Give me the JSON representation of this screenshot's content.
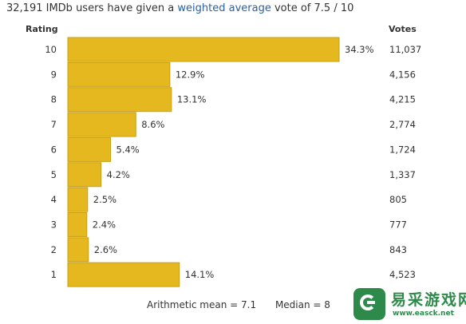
{
  "header": {
    "prefix": "32,191 IMDb users have given a",
    "link_text": "weighted average",
    "suffix": "vote of 7.5 / 10"
  },
  "columns": {
    "rating": "Rating",
    "votes": "Votes"
  },
  "colors": {
    "bar": "#e4b81e",
    "bar_edge": "#c99f10",
    "link": "#2a5fa0",
    "logo": "#2e8a4a"
  },
  "chart_data": {
    "type": "bar",
    "orientation": "horizontal",
    "categories": [
      "10",
      "9",
      "8",
      "7",
      "6",
      "5",
      "4",
      "3",
      "2",
      "1"
    ],
    "percent_labels": [
      "34.3%",
      "12.9%",
      "13.1%",
      "8.6%",
      "5.4%",
      "4.2%",
      "2.5%",
      "2.4%",
      "2.6%",
      "14.1%"
    ],
    "series": [
      {
        "values": [
          34.3,
          12.9,
          13.1,
          8.6,
          5.4,
          4.2,
          2.5,
          2.4,
          2.6,
          14.1
        ]
      }
    ],
    "votes": [
      "11,037",
      "4,156",
      "4,215",
      "2,774",
      "1,724",
      "1,337",
      "805",
      "777",
      "843",
      "4,523"
    ],
    "xlim": [
      0,
      34.3
    ],
    "grid": false
  },
  "footer": {
    "mean": "Arithmetic mean = 7.1",
    "median": "Median = 8"
  },
  "watermark": {
    "icon": "e-logo-icon",
    "chinese": "易采游戏网",
    "url": "www.easck.net"
  }
}
